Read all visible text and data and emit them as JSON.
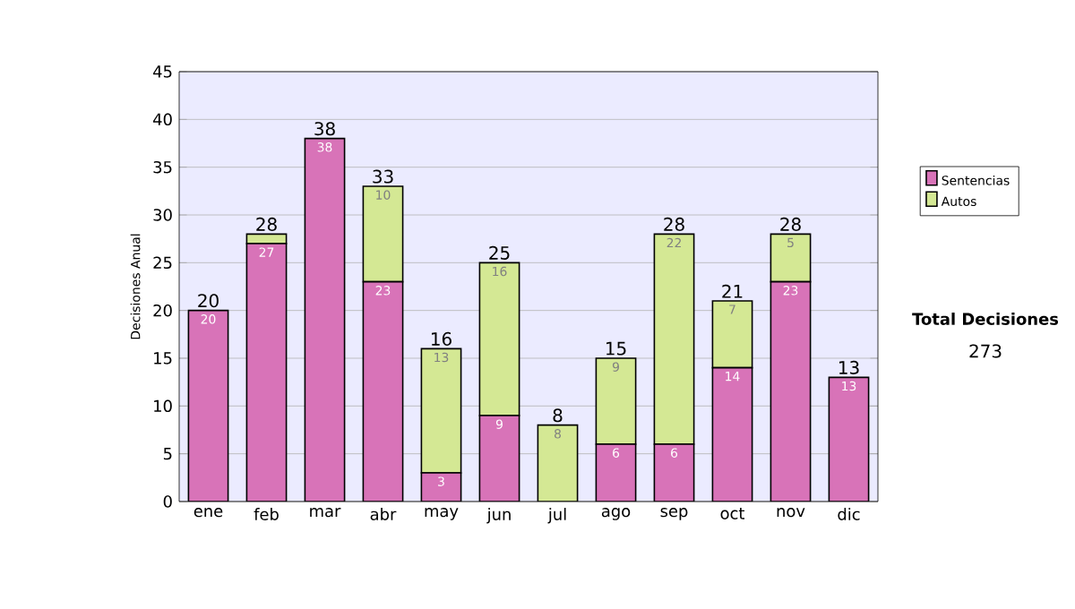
{
  "chart_data": {
    "type": "bar",
    "stacked": true,
    "ylabel": "Decisiones Anual",
    "categories": [
      "ene",
      "feb",
      "mar",
      "abr",
      "may",
      "jun",
      "jul",
      "ago",
      "sep",
      "oct",
      "nov",
      "dic"
    ],
    "series": [
      {
        "name": "Sentencias",
        "color": "#d873b8",
        "values": [
          20,
          27,
          38,
          23,
          3,
          9,
          0,
          6,
          6,
          14,
          23,
          13
        ],
        "value_labels": [
          "20",
          "27",
          "38",
          "23",
          "3",
          "9",
          null,
          "6",
          "6",
          "14",
          "23",
          "13"
        ]
      },
      {
        "name": "Autos",
        "color": "#d4e894",
        "values": [
          0,
          1,
          0,
          10,
          13,
          16,
          8,
          9,
          22,
          7,
          5,
          0
        ],
        "value_labels": [
          null,
          null,
          null,
          "10",
          "13",
          "16",
          "8",
          "9",
          "22",
          "7",
          "5",
          null
        ]
      }
    ],
    "totals": [
      "20",
      "28",
      "38",
      "33",
      "16",
      "25",
      "8",
      "15",
      "28",
      "21",
      "28",
      "13"
    ],
    "ylim": [
      0,
      45
    ],
    "yticks": [
      0,
      5,
      10,
      15,
      20,
      25,
      30,
      35,
      40,
      45
    ],
    "grid": "y",
    "legend": "right",
    "annotations": [
      "Total Decisiones",
      "273"
    ]
  }
}
